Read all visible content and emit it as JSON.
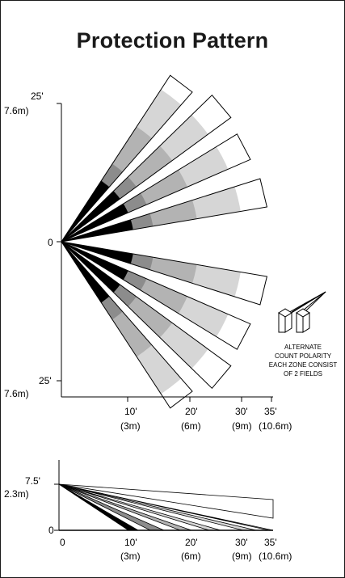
{
  "title": "Protection Pattern",
  "colors": {
    "ink": "#000000",
    "zone_near": "#000000",
    "zone_mid": "#8c8c8c",
    "zone_mid_light": "#b3b3b3",
    "zone_far": "#d6d6d6",
    "zone_outer": "#ffffff",
    "line_tint": "#3d3d3d"
  },
  "top_view": {
    "y_top_feet": "25'",
    "y_top_meters": "7.6m)",
    "y_center": "0",
    "y_bottom_feet": "25'",
    "y_bottom_meters": "7.6m)",
    "x_ticks": [
      {
        "feet": "10'",
        "meters": "(3m)"
      },
      {
        "feet": "20'",
        "meters": "(6m)"
      },
      {
        "feet": "30'",
        "meters": "(9m)"
      },
      {
        "feet": "35'",
        "meters": "(10.6m)"
      }
    ]
  },
  "legend": {
    "lines": [
      "ALTERNATE",
      "COUNT POLARITY",
      "EACH ZONE CONSIST",
      "OF 2 FIELDS"
    ]
  },
  "side_view": {
    "y_top_feet": "7.5'",
    "y_top_meters": "2.3m)",
    "y_zero": "0",
    "x_zero": "0",
    "x_ticks": [
      {
        "feet": "10'",
        "meters": "(3m)"
      },
      {
        "feet": "20'",
        "meters": "(6m)"
      },
      {
        "feet": "30'",
        "meters": "(9m)"
      },
      {
        "feet": "35'",
        "meters": "(10.6m)"
      }
    ]
  }
}
